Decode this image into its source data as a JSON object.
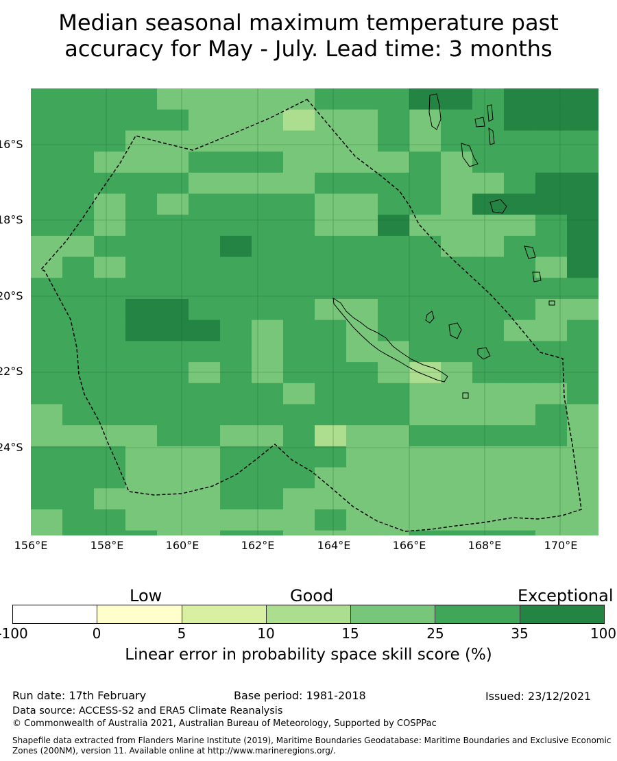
{
  "title": {
    "line1": "Median seasonal maximum temperature past",
    "line2": "accuracy for May - July. Lead time: 3 months"
  },
  "map": {
    "lat_labels": [
      "16°S",
      "18°S",
      "20°S",
      "22°S",
      "24°S"
    ],
    "lon_labels": [
      "156°E",
      "158°E",
      "160°E",
      "162°E",
      "164°E",
      "166°E",
      "168°E",
      "170°E"
    ]
  },
  "legend": {
    "categories": [
      "Low",
      "Good",
      "Exceptional"
    ],
    "ticks": [
      "-100",
      "0",
      "5",
      "10",
      "15",
      "25",
      "35",
      "100"
    ],
    "colors": [
      "#ffffff",
      "#ffffcc",
      "#d9f0a3",
      "#addd8e",
      "#78c679",
      "#3fa65a",
      "#238443"
    ],
    "label": "Linear error in probability space skill score (%)"
  },
  "footer": {
    "run_date": "Run date: 17th February",
    "base_period": "Base period: 1981-2018",
    "issued": "Issued: 23/12/2021",
    "data_source": "Data source: ACCESS-S2 and ERA5 Climate Reanalysis",
    "copyright": "© Commonwealth of Australia 2021, Australian Bureau of Meteorology, Supported by COSPPac",
    "shapefile": "Shapefile data extracted from Flanders Marine Institute (2019), Maritime Boundaries Geodatabase: Maritime Boundaries and Exclusive Economic Zones (200NM), version 11. Available online at http://www.marineregions.org/."
  }
}
